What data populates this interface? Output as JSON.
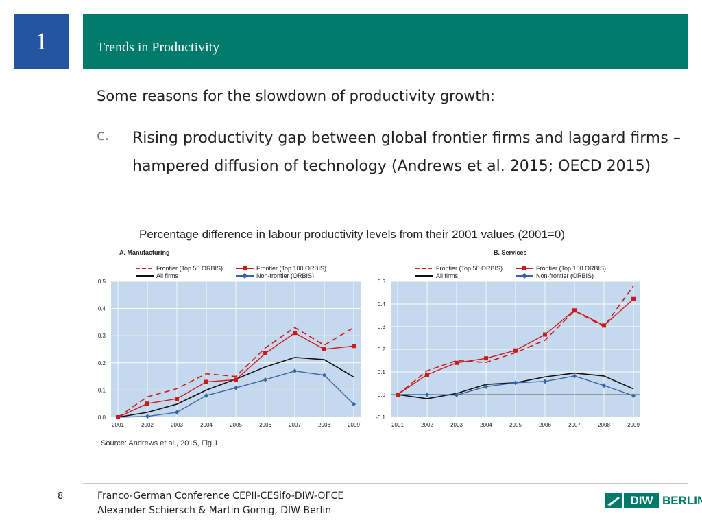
{
  "header": {
    "section_number": "1",
    "title": "Trends in Productivity"
  },
  "intro": "Some reasons for the slowdown of productivity growth:",
  "bullet": {
    "marker": "c.",
    "text": "Rising productivity gap between global frontier firms and laggard firms – hampered diffusion of technology (Andrews et al. 2015; OECD 2015)"
  },
  "figure_title": "Percentage difference in labour productivity levels from their 2001 values (2001=0)",
  "source": "Source:  Andrews et al., 2015, Fig.1",
  "footer": {
    "page": "8",
    "line1": "Franco-German Conference CEPII-CESifo-DIW-OFCE",
    "line2": "Alexander Schiersch & Martin Gornig, DIW Berlin",
    "logo_diw": "DIW",
    "logo_berlin": "BERLIN"
  },
  "colors": {
    "teal": "#007b6b",
    "blue": "#2456a0",
    "frontier_red": "#cc1a1a",
    "nonfrontier_blue": "#3a64a8",
    "plot_bg": "#c5d9ee"
  },
  "chart_data": [
    {
      "type": "line",
      "title": "A. Manufacturing",
      "categories": [
        "2001",
        "2002",
        "2003",
        "2004",
        "2005",
        "2006",
        "2007",
        "2008",
        "2009"
      ],
      "ylim": [
        0,
        0.5
      ],
      "yticks": [
        0.0,
        0.1,
        0.2,
        0.3,
        0.4,
        0.5
      ],
      "ytick_labels": [
        "0.0",
        "0.1",
        "0.2",
        "0.3",
        "0.4",
        "0.5"
      ],
      "grid": true,
      "series": [
        {
          "name": "Frontier (Top 50 ORBIS)",
          "values": [
            0,
            0.075,
            0.105,
            0.16,
            0.15,
            0.255,
            0.33,
            0.265,
            0.33
          ]
        },
        {
          "name": "All firms",
          "values": [
            0,
            0.018,
            0.048,
            0.1,
            0.14,
            0.185,
            0.22,
            0.212,
            0.148
          ]
        },
        {
          "name": "Frontier (Top 100 ORBIS)",
          "values": [
            0,
            0.05,
            0.068,
            0.13,
            0.138,
            0.235,
            0.31,
            0.25,
            0.262
          ]
        },
        {
          "name": "Non-frontier (ORBIS)",
          "values": [
            0,
            0.003,
            0.018,
            0.08,
            0.108,
            0.138,
            0.17,
            0.155,
            0.048
          ]
        }
      ]
    },
    {
      "type": "line",
      "title": "B. Services",
      "categories": [
        "2001",
        "2002",
        "2003",
        "2004",
        "2005",
        "2006",
        "2007",
        "2008",
        "2009"
      ],
      "ylim": [
        -0.1,
        0.5
      ],
      "yticks": [
        -0.1,
        0.0,
        0.1,
        0.2,
        0.3,
        0.4,
        0.5
      ],
      "ytick_labels": [
        "-0.1",
        "0.0",
        "0.1",
        "0.2",
        "0.3",
        "0.4",
        "0.5"
      ],
      "grid": true,
      "series": [
        {
          "name": "Frontier (Top 50 ORBIS)",
          "values": [
            0,
            0.105,
            0.15,
            0.142,
            0.185,
            0.24,
            0.37,
            0.3,
            0.48
          ]
        },
        {
          "name": "All firms",
          "values": [
            0,
            -0.018,
            0.005,
            0.045,
            0.052,
            0.078,
            0.095,
            0.082,
            0.025
          ]
        },
        {
          "name": "Frontier (Top 100 ORBIS)",
          "values": [
            0,
            0.088,
            0.14,
            0.16,
            0.195,
            0.265,
            0.372,
            0.305,
            0.422
          ]
        },
        {
          "name": "Non-frontier (ORBIS)",
          "values": [
            0,
            0,
            -0.002,
            0.035,
            0.052,
            0.058,
            0.082,
            0.04,
            -0.005
          ]
        }
      ]
    }
  ]
}
